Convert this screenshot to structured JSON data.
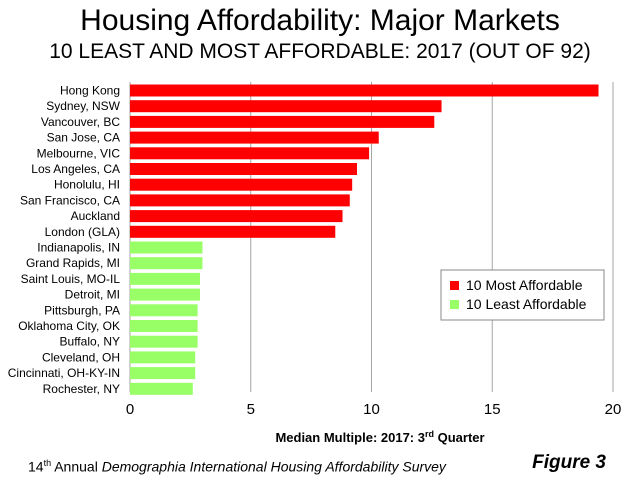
{
  "title": "Housing Affordability: Major Markets",
  "subtitle": "10 LEAST AND MOST AFFORDABLE: 2017 (OUT OF 92)",
  "footer": {
    "ordinal": "14",
    "ordinal_suffix": "th",
    "text_plain": "Annual",
    "text_italic": "Demographia International Housing Affordability Survey"
  },
  "figure_label": "Figure 3",
  "colors": {
    "most": "#ff0000",
    "least": "#99ff66",
    "grid": "#a6a6a6"
  },
  "chart_data": {
    "type": "bar",
    "orientation": "horizontal",
    "title": "Housing Affordability: Major Markets",
    "subtitle": "10 LEAST AND MOST AFFORDABLE: 2017 (OUT OF 92)",
    "xlabel_main": "Median Multiple: 2017: 3",
    "xlabel_sup": "rd",
    "xlabel_tail": " Quarter",
    "xlim": [
      0,
      20
    ],
    "xticks": [
      0,
      5,
      10,
      15,
      20
    ],
    "grid": true,
    "legend_position": "right",
    "legend": [
      {
        "name": "10 Most Affordable",
        "color_key": "most"
      },
      {
        "name": "10 Least Affordable",
        "color_key": "least"
      }
    ],
    "bars": [
      {
        "category": "Hong Kong",
        "value": 19.4,
        "group": "most"
      },
      {
        "category": "Sydney, NSW",
        "value": 12.9,
        "group": "most"
      },
      {
        "category": "Vancouver, BC",
        "value": 12.6,
        "group": "most"
      },
      {
        "category": "San Jose, CA",
        "value": 10.3,
        "group": "most"
      },
      {
        "category": "Melbourne, VIC",
        "value": 9.9,
        "group": "most"
      },
      {
        "category": "Los Angeles, CA",
        "value": 9.4,
        "group": "most"
      },
      {
        "category": "Honolulu, HI",
        "value": 9.2,
        "group": "most"
      },
      {
        "category": "San Francisco, CA",
        "value": 9.1,
        "group": "most"
      },
      {
        "category": "Auckland",
        "value": 8.8,
        "group": "most"
      },
      {
        "category": "London (GLA)",
        "value": 8.5,
        "group": "most"
      },
      {
        "category": "Indianapolis, IN",
        "value": 3.0,
        "group": "least"
      },
      {
        "category": "Grand Rapids, MI",
        "value": 3.0,
        "group": "least"
      },
      {
        "category": "Saint Louis, MO-IL",
        "value": 2.9,
        "group": "least"
      },
      {
        "category": "Detroit, MI",
        "value": 2.9,
        "group": "least"
      },
      {
        "category": "Pittsburgh, PA",
        "value": 2.8,
        "group": "least"
      },
      {
        "category": "Oklahoma City, OK",
        "value": 2.8,
        "group": "least"
      },
      {
        "category": "Buffalo, NY",
        "value": 2.8,
        "group": "least"
      },
      {
        "category": "Cleveland, OH",
        "value": 2.7,
        "group": "least"
      },
      {
        "category": "Cincinnati, OH-KY-IN",
        "value": 2.7,
        "group": "least"
      },
      {
        "category": "Rochester, NY",
        "value": 2.6,
        "group": "least"
      }
    ]
  }
}
